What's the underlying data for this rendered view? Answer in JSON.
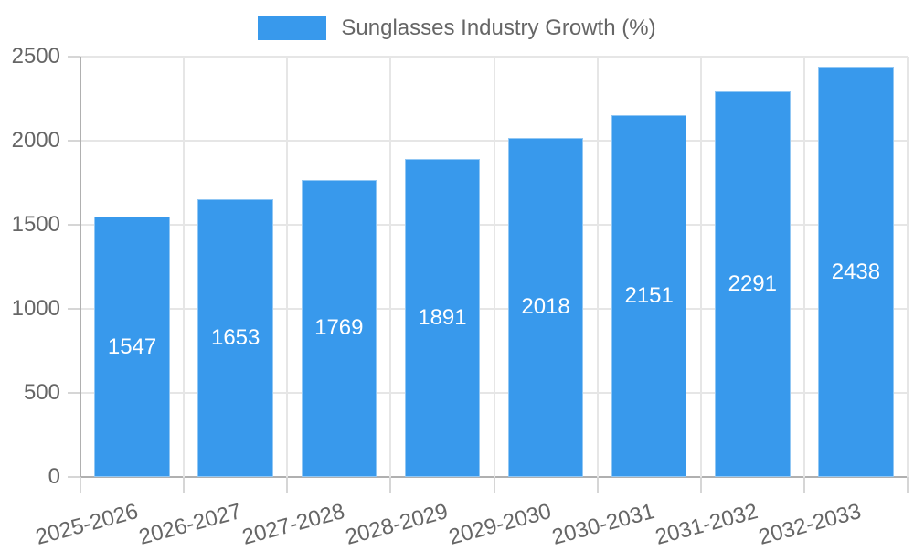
{
  "chart_data": {
    "type": "bar",
    "title": "",
    "xlabel": "",
    "ylabel": "",
    "legend": "Sunglasses Industry Growth (%)",
    "legend_position": "top",
    "categories": [
      "2025-2026",
      "2026-2027",
      "2027-2028",
      "2028-2029",
      "2029-2030",
      "2030-2031",
      "2031-2032",
      "2032-2033"
    ],
    "values": [
      1547,
      1653,
      1769,
      1891,
      2018,
      2151,
      2291,
      2438
    ],
    "ylim": [
      0,
      2500
    ],
    "yticks": [
      0,
      500,
      1000,
      1500,
      2000,
      2500
    ],
    "grid": true,
    "colors": {
      "bar_fill": "#3899ec",
      "bar_value_label": "#ffffff",
      "axis_text": "#666666",
      "gridline": "#e6e6e6",
      "axis_line": "#b0b0b0",
      "legend_text": "#666666"
    }
  }
}
